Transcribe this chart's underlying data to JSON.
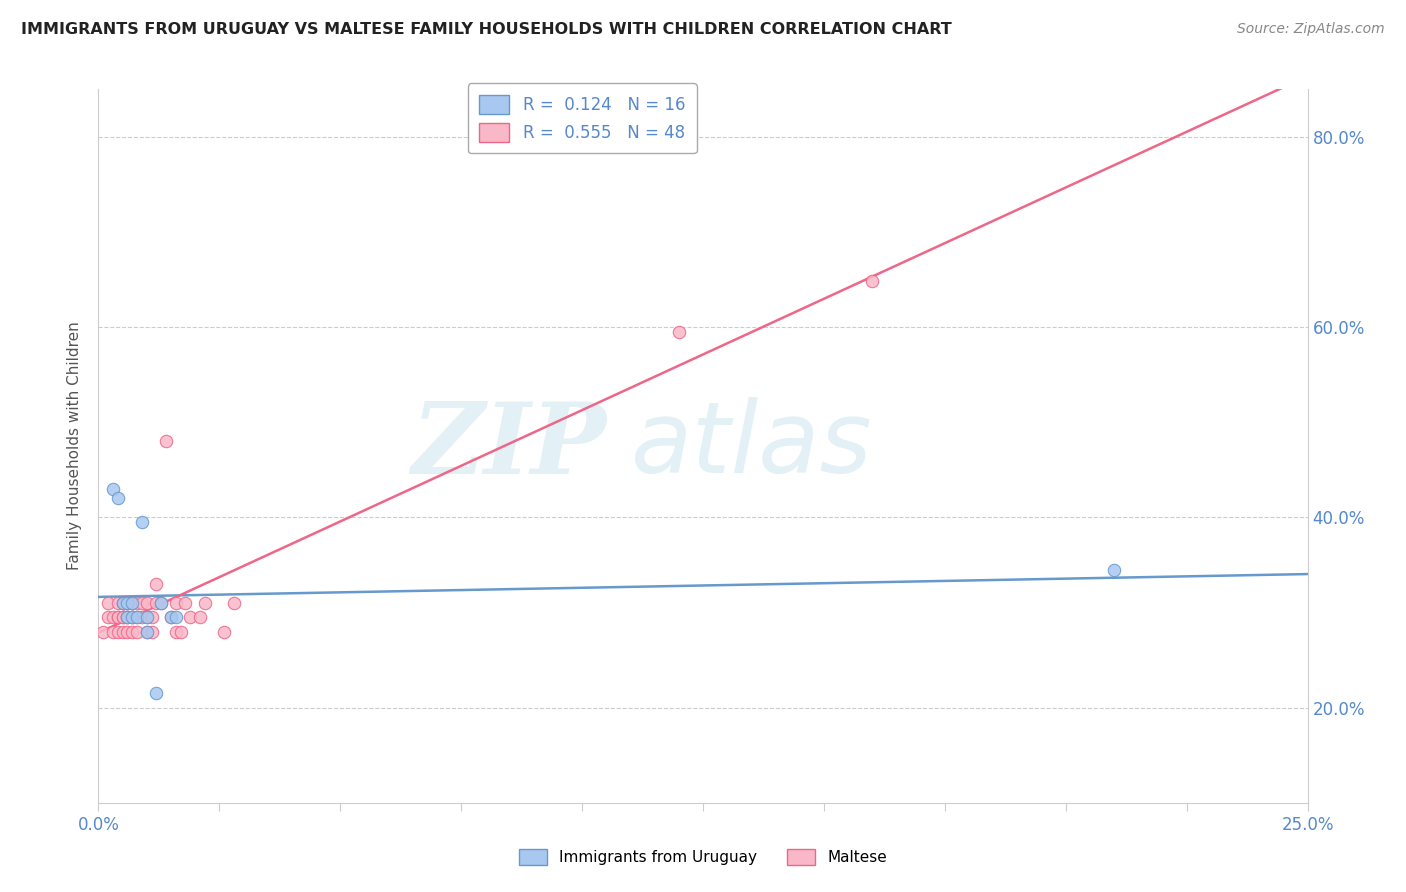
{
  "title": "IMMIGRANTS FROM URUGUAY VS MALTESE FAMILY HOUSEHOLDS WITH CHILDREN CORRELATION CHART",
  "source": "Source: ZipAtlas.com",
  "ylabel_label": "Family Households with Children",
  "legend_label1": "Immigrants from Uruguay",
  "legend_label2": "Maltese",
  "r1": 0.124,
  "n1": 16,
  "r2": 0.555,
  "n2": 48,
  "color1": "#a8c8f0",
  "color2": "#f8b8c8",
  "line_color1": "#6699cc",
  "line_color2": "#ee6688",
  "watermark_zip": "ZIP",
  "watermark_atlas": "atlas",
  "xlim": [
    0.0,
    0.25
  ],
  "ylim": [
    0.1,
    0.85
  ],
  "ytick_vals": [
    0.2,
    0.4,
    0.6,
    0.8
  ],
  "scatter1_x": [
    0.003,
    0.004,
    0.005,
    0.006,
    0.006,
    0.007,
    0.007,
    0.008,
    0.009,
    0.01,
    0.01,
    0.012,
    0.013,
    0.015,
    0.016,
    0.21
  ],
  "scatter1_y": [
    0.43,
    0.42,
    0.31,
    0.295,
    0.31,
    0.295,
    0.31,
    0.295,
    0.395,
    0.28,
    0.295,
    0.215,
    0.31,
    0.295,
    0.295,
    0.345
  ],
  "scatter2_x": [
    0.001,
    0.002,
    0.002,
    0.003,
    0.003,
    0.004,
    0.004,
    0.004,
    0.004,
    0.005,
    0.005,
    0.005,
    0.005,
    0.005,
    0.006,
    0.006,
    0.006,
    0.006,
    0.007,
    0.007,
    0.007,
    0.007,
    0.008,
    0.008,
    0.008,
    0.009,
    0.009,
    0.01,
    0.01,
    0.01,
    0.011,
    0.011,
    0.012,
    0.012,
    0.013,
    0.014,
    0.015,
    0.016,
    0.016,
    0.017,
    0.018,
    0.019,
    0.021,
    0.022,
    0.026,
    0.028,
    0.12,
    0.16
  ],
  "scatter2_y": [
    0.28,
    0.295,
    0.31,
    0.295,
    0.28,
    0.31,
    0.295,
    0.295,
    0.28,
    0.31,
    0.295,
    0.295,
    0.28,
    0.31,
    0.295,
    0.295,
    0.31,
    0.28,
    0.295,
    0.31,
    0.295,
    0.28,
    0.31,
    0.295,
    0.28,
    0.31,
    0.295,
    0.31,
    0.295,
    0.28,
    0.295,
    0.28,
    0.31,
    0.33,
    0.31,
    0.48,
    0.295,
    0.31,
    0.28,
    0.28,
    0.31,
    0.295,
    0.295,
    0.31,
    0.28,
    0.31,
    0.595,
    0.648
  ]
}
